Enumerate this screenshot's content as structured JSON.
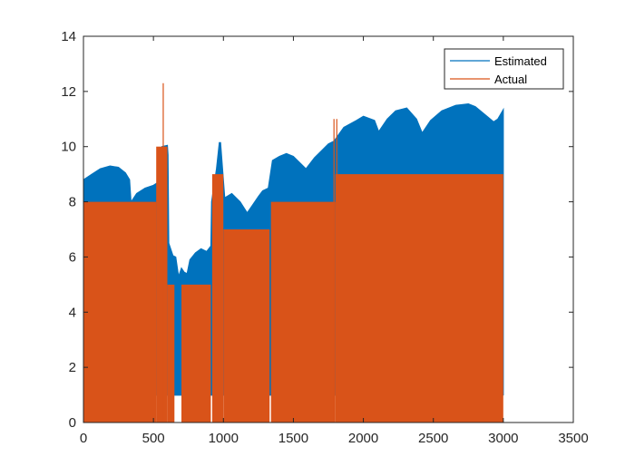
{
  "chart_data": {
    "type": "area",
    "title": "",
    "xlabel": "",
    "ylabel": "",
    "xlim": [
      0,
      3500
    ],
    "ylim": [
      0,
      14
    ],
    "x_ticks": [
      0,
      500,
      1000,
      1500,
      2000,
      2500,
      3000,
      3500
    ],
    "y_ticks": [
      0,
      2,
      4,
      6,
      8,
      10,
      12,
      14
    ],
    "x_tick_labels": [
      "0",
      "500",
      "1000",
      "1500",
      "2000",
      "2500",
      "3000",
      "3500"
    ],
    "y_tick_labels": [
      "0",
      "2",
      "4",
      "6",
      "8",
      "10",
      "12",
      "14"
    ],
    "grid": false,
    "legend_position": "top-right",
    "series": [
      {
        "name": "Estimated",
        "color": "#0072BD",
        "upper_envelope": [
          [
            0,
            8.8
          ],
          [
            60,
            9.0
          ],
          [
            120,
            9.2
          ],
          [
            190,
            9.3
          ],
          [
            250,
            9.25
          ],
          [
            300,
            9.05
          ],
          [
            330,
            8.8
          ],
          [
            340,
            8.0
          ],
          [
            380,
            8.3
          ],
          [
            440,
            8.5
          ],
          [
            500,
            8.6
          ],
          [
            530,
            8.7
          ],
          [
            545,
            8.9
          ],
          [
            560,
            10.0
          ],
          [
            600,
            10.05
          ],
          [
            605,
            9.7
          ],
          [
            610,
            6.5
          ],
          [
            640,
            6.05
          ],
          [
            660,
            6.0
          ],
          [
            680,
            5.3
          ],
          [
            700,
            5.6
          ],
          [
            720,
            5.45
          ],
          [
            740,
            5.4
          ],
          [
            760,
            5.9
          ],
          [
            800,
            6.15
          ],
          [
            840,
            6.3
          ],
          [
            880,
            6.2
          ],
          [
            910,
            6.4
          ],
          [
            915,
            8.0
          ],
          [
            950,
            9.2
          ],
          [
            970,
            10.15
          ],
          [
            980,
            10.15
          ],
          [
            1010,
            8.15
          ],
          [
            1060,
            8.3
          ],
          [
            1120,
            8.0
          ],
          [
            1170,
            7.6
          ],
          [
            1210,
            7.9
          ],
          [
            1250,
            8.2
          ],
          [
            1280,
            8.4
          ],
          [
            1320,
            8.5
          ],
          [
            1350,
            9.5
          ],
          [
            1400,
            9.65
          ],
          [
            1450,
            9.75
          ],
          [
            1500,
            9.65
          ],
          [
            1550,
            9.4
          ],
          [
            1590,
            9.2
          ],
          [
            1650,
            9.6
          ],
          [
            1710,
            9.9
          ],
          [
            1750,
            10.1
          ],
          [
            1790,
            10.2
          ],
          [
            1860,
            10.7
          ],
          [
            1950,
            10.95
          ],
          [
            2000,
            11.1
          ],
          [
            2080,
            10.95
          ],
          [
            2110,
            10.55
          ],
          [
            2170,
            11.0
          ],
          [
            2230,
            11.3
          ],
          [
            2310,
            11.4
          ],
          [
            2380,
            11.0
          ],
          [
            2420,
            10.5
          ],
          [
            2480,
            10.95
          ],
          [
            2560,
            11.3
          ],
          [
            2660,
            11.5
          ],
          [
            2750,
            11.55
          ],
          [
            2800,
            11.45
          ],
          [
            2860,
            11.2
          ],
          [
            2930,
            10.9
          ],
          [
            2960,
            11.0
          ],
          [
            3000,
            11.35
          ]
        ],
        "baseline": 1.0
      },
      {
        "name": "Actual",
        "color": "#D95319",
        "segments": [
          {
            "x": [
              0,
              340
            ],
            "low": 0,
            "high": 8
          },
          {
            "x": [
              340,
              520
            ],
            "low": 0,
            "high": 8
          },
          {
            "x": [
              520,
              600
            ],
            "low": 0,
            "high": 10
          },
          {
            "x": [
              600,
              650
            ],
            "low": 0,
            "high": 5
          },
          {
            "x": [
              700,
              910
            ],
            "low": 0,
            "high": 5
          },
          {
            "x": [
              920,
              1000
            ],
            "low": 0,
            "high": 9
          },
          {
            "x": [
              1000,
              1330
            ],
            "low": 0,
            "high": 7
          },
          {
            "x": [
              1340,
              1800
            ],
            "low": 0,
            "high": 8
          },
          {
            "x": [
              1800,
              3000
            ],
            "low": 0,
            "high": 9
          }
        ],
        "spikes": [
          {
            "x": 570,
            "y": 12.3
          },
          {
            "x": 1790,
            "y": 11.0
          },
          {
            "x": 1810,
            "y": 11.0
          }
        ]
      }
    ]
  }
}
